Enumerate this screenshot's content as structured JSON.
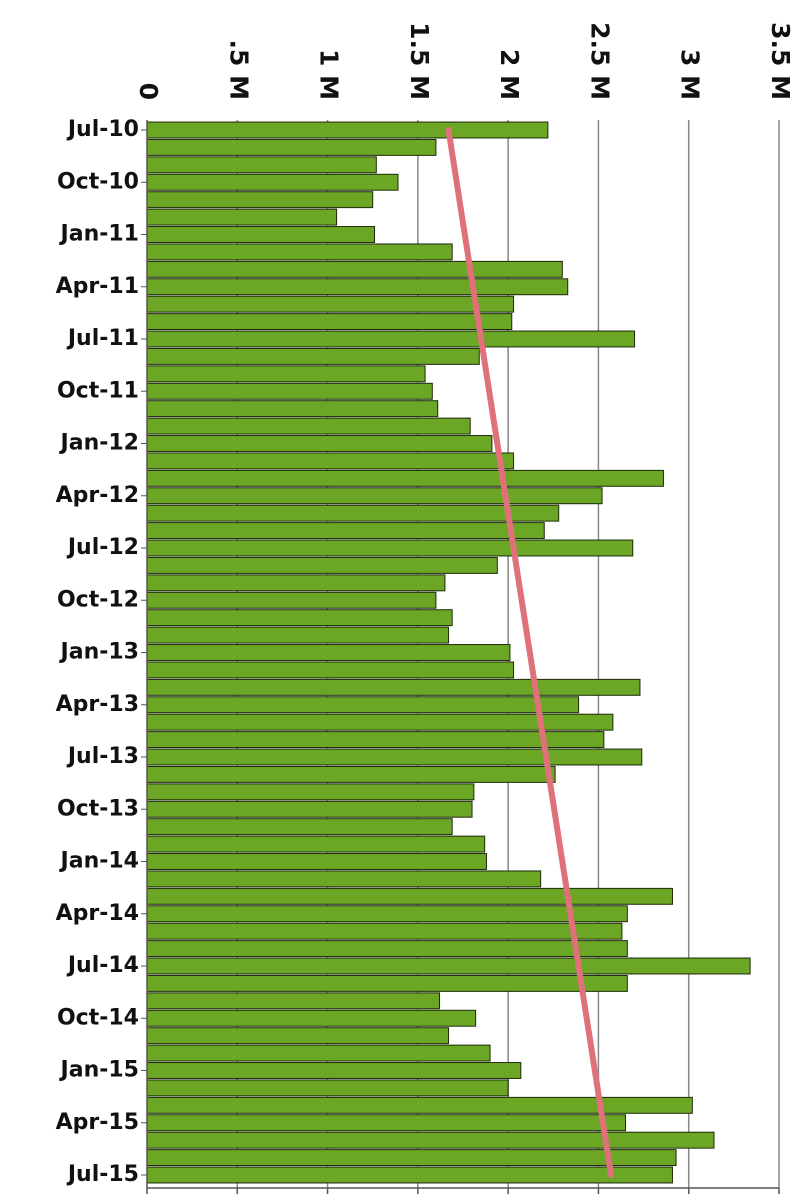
{
  "chart_data": {
    "type": "bar",
    "orientation": "horizontal",
    "categories": [
      "Jul-10",
      null,
      null,
      "Oct-10",
      null,
      null,
      "Jan-11",
      null,
      null,
      "Apr-11",
      null,
      null,
      "Jul-11",
      null,
      null,
      "Oct-11",
      null,
      null,
      "Jan-12",
      null,
      null,
      "Apr-12",
      null,
      null,
      "Jul-12",
      null,
      null,
      "Oct-12",
      null,
      null,
      "Jan-13",
      null,
      null,
      "Apr-13",
      null,
      null,
      "Jul-13",
      null,
      null,
      "Oct-13",
      null,
      null,
      "Jan-14",
      null,
      null,
      "Apr-14",
      null,
      null,
      "Jul-14",
      null,
      null,
      "Oct-14",
      null,
      null,
      "Jan-15",
      null,
      null,
      "Apr-15",
      null,
      null,
      "Jul-15"
    ],
    "values": [
      2220000,
      1600000,
      1270000,
      1390000,
      1250000,
      1050000,
      1260000,
      1690000,
      2300000,
      2330000,
      2030000,
      2020000,
      2700000,
      1840000,
      1540000,
      1580000,
      1610000,
      1790000,
      1910000,
      2030000,
      2860000,
      2520000,
      2280000,
      2200000,
      2690000,
      1940000,
      1650000,
      1600000,
      1690000,
      1670000,
      2010000,
      2030000,
      2730000,
      2390000,
      2580000,
      2530000,
      2740000,
      2260000,
      1810000,
      1800000,
      1690000,
      1870000,
      1880000,
      2180000,
      2910000,
      2660000,
      2630000,
      2660000,
      3340000,
      2660000,
      1620000,
      1820000,
      1670000,
      1900000,
      2070000,
      2000000,
      3020000,
      2650000,
      3140000,
      2930000,
      2910000
    ],
    "color": "#6ba624",
    "trendline": {
      "values": [
        1670000,
        2570000
      ],
      "color": "#e0707a"
    },
    "xlim": [
      0,
      3500000
    ],
    "xticks": [
      0,
      {
        "value": 500000,
        "label": ".5 M"
      },
      {
        "value": 1000000,
        "label": "1 M"
      },
      {
        "value": 1500000,
        "label": "1.5 M"
      },
      {
        "value": 2000000,
        "label": "2 M"
      },
      {
        "value": 2500000,
        "label": "2.5 M"
      },
      {
        "value": 3000000,
        "label": "3 M"
      },
      {
        "value": 3500000,
        "label": "3.5 M"
      }
    ],
    "grid": true
  }
}
